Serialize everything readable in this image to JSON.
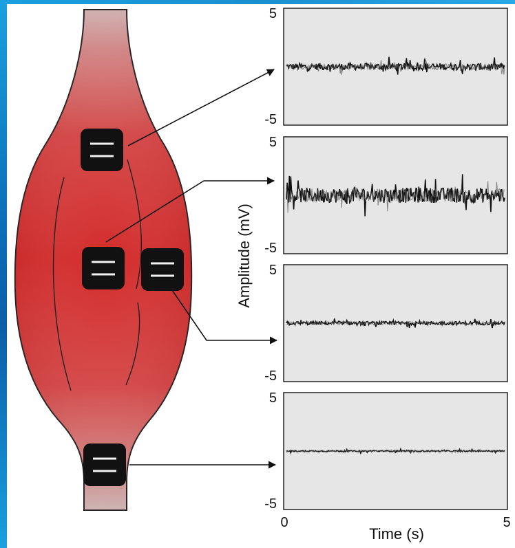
{
  "colors": {
    "muscle_top": "#c9c4c4",
    "muscle_mid": "#d63030",
    "muscle_edge": "#b01e1e",
    "panel_bg": "#e6e6e6",
    "trace": "#111111",
    "trace_grey": "#555555",
    "electrode": "#111111",
    "frame_accent": "#1a8fd0"
  },
  "electrodes": [
    {
      "name": "electrode-upper"
    },
    {
      "name": "electrode-middle-left"
    },
    {
      "name": "electrode-middle-right"
    },
    {
      "name": "electrode-lower"
    }
  ],
  "chart_data": {
    "type": "line",
    "panels": [
      {
        "name": "emg-signal-1",
        "amplitude_level": 1.2,
        "ylim": [
          -5,
          5
        ],
        "ytick_top": "5",
        "ytick_bottom": "-5"
      },
      {
        "name": "emg-signal-2",
        "amplitude_level": 2.6,
        "ylim": [
          -5,
          5
        ],
        "ytick_top": "5",
        "ytick_bottom": "-5"
      },
      {
        "name": "emg-signal-3",
        "amplitude_level": 0.6,
        "ylim": [
          -5,
          5
        ],
        "ytick_top": "5",
        "ytick_bottom": "-5"
      },
      {
        "name": "emg-signal-4",
        "amplitude_level": 0.25,
        "ylim": [
          -5,
          5
        ],
        "ytick_top": "5",
        "ytick_bottom": "-5"
      }
    ],
    "xlim": [
      0,
      5
    ],
    "xtick_labels": [
      "0",
      "5"
    ],
    "xlabel": "Time (s)",
    "ylabel": "Amplitude (mV)",
    "grid": false
  }
}
